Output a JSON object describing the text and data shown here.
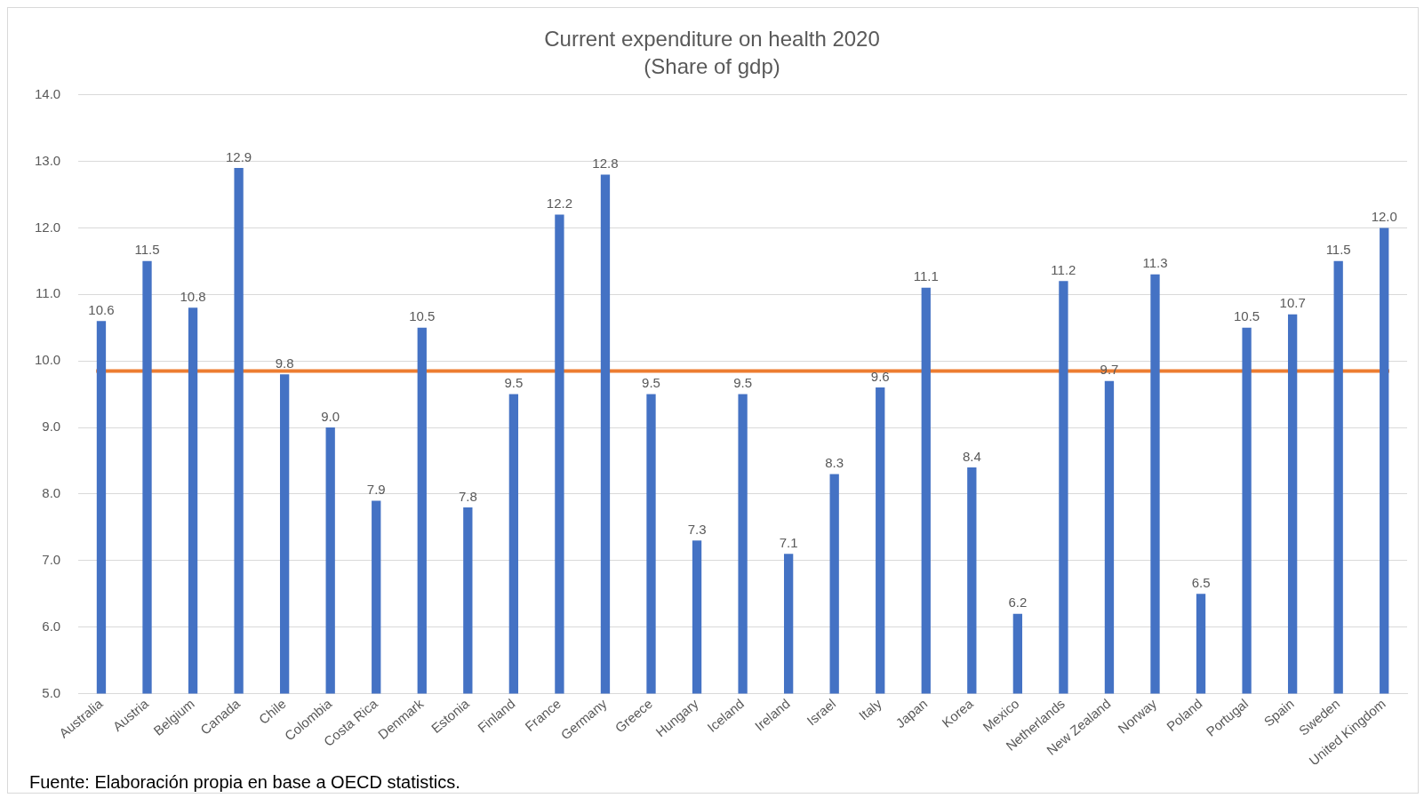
{
  "chart_data": {
    "type": "bar",
    "title": "Current expenditure on health 2020",
    "subtitle": "(Share of gdp)",
    "categories": [
      "Australia",
      "Austria",
      "Belgium",
      "Canada",
      "Chile",
      "Colombia",
      "Costa Rica",
      "Denmark",
      "Estonia",
      "Finland",
      "France",
      "Germany",
      "Greece",
      "Hungary",
      "Iceland",
      "Ireland",
      "Israel",
      "Italy",
      "Japan",
      "Korea",
      "Mexico",
      "Netherlands",
      "New Zealand",
      "Norway",
      "Poland",
      "Portugal",
      "Spain",
      "Sweden",
      "United Kingdom"
    ],
    "values": [
      10.6,
      11.5,
      10.8,
      12.9,
      9.8,
      9.0,
      7.9,
      10.5,
      7.8,
      9.5,
      12.2,
      12.8,
      9.5,
      7.3,
      9.5,
      7.1,
      8.3,
      9.6,
      11.1,
      8.4,
      6.2,
      11.2,
      9.7,
      11.3,
      6.5,
      10.5,
      10.7,
      11.5,
      12.0
    ],
    "value_labels": [
      "10.6",
      "11.5",
      "10.8",
      "12.9",
      "9.8",
      "9.0",
      "7.9",
      "10.5",
      "7.8",
      "9.5",
      "12.2",
      "12.8",
      "9.5",
      "7.3",
      "9.5",
      "7.1",
      "8.3",
      "9.6",
      "11.1",
      "8.4",
      "6.2",
      "11.2",
      "9.7",
      "11.3",
      "6.5",
      "10.5",
      "10.7",
      "11.5",
      "12.0"
    ],
    "color": "#4472c4",
    "ylim": [
      5,
      14
    ],
    "yticks": [
      {
        "value": 5,
        "label": "5.0"
      },
      {
        "value": 6,
        "label": "6.0"
      },
      {
        "value": 7,
        "label": "7.0"
      },
      {
        "value": 8,
        "label": "8.0"
      },
      {
        "value": 9,
        "label": "9.0"
      },
      {
        "value": 10,
        "label": "10.0"
      },
      {
        "value": 11,
        "label": "11.0"
      },
      {
        "value": 12,
        "label": "12.0"
      },
      {
        "value": 13,
        "label": "13.0"
      },
      {
        "value": 14,
        "label": "14.0"
      }
    ],
    "grid": "y",
    "legend": false,
    "ref_lines": [
      {
        "axis": "y",
        "value": 9.85,
        "color": "#ed7d31"
      }
    ],
    "annotations": [
      "Fuente: Elaboración propia en base a OECD statistics."
    ]
  }
}
